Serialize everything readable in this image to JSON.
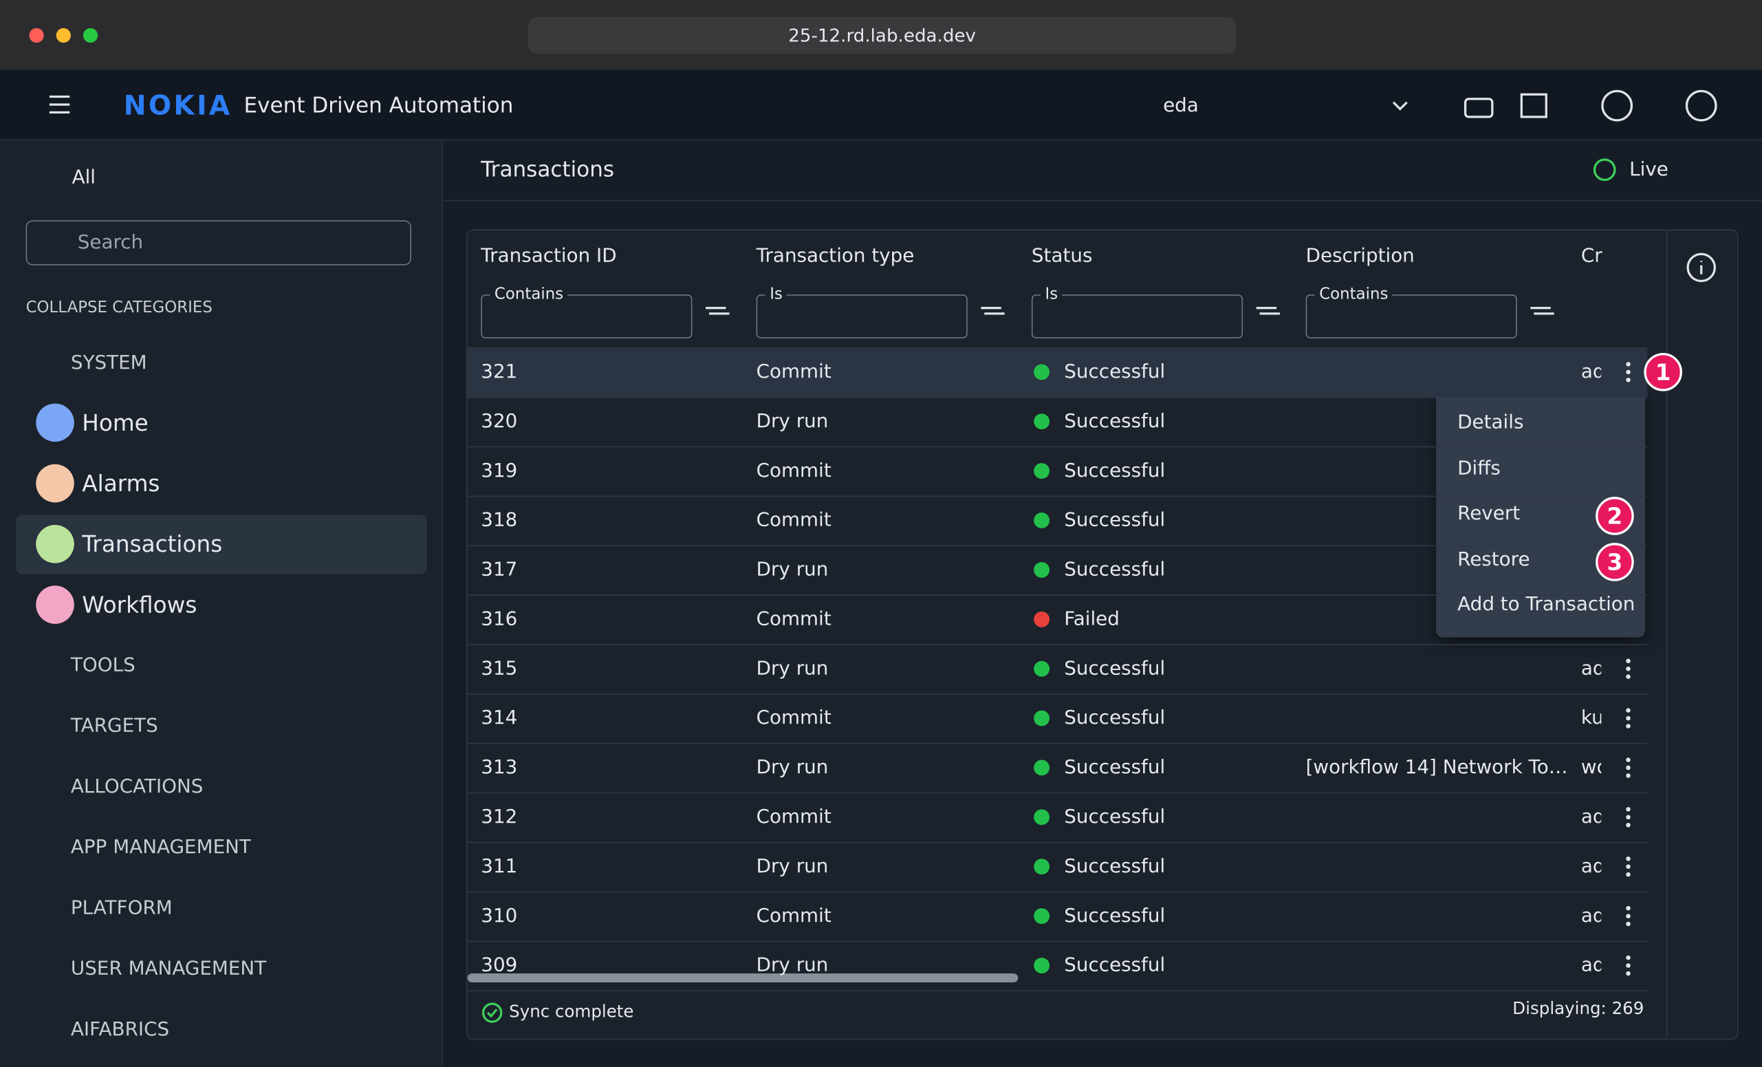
{
  "browser": {
    "url": "25-12.rd.lab.eda.dev"
  },
  "header": {
    "logo": "NOKIA",
    "app_title": "Event Driven Automation",
    "namespace": "eda"
  },
  "sidebar": {
    "scope": "All",
    "search_placeholder": "Search",
    "collapse": "COLLAPSE CATEGORIES",
    "system": "SYSTEM",
    "items": [
      {
        "label": "Home",
        "color": "#7aa7f5"
      },
      {
        "label": "Alarms",
        "color": "#f5c7a9"
      },
      {
        "label": "Transactions",
        "color": "#b9e39a",
        "selected": true
      },
      {
        "label": "Workflows",
        "color": "#f2a6c6"
      }
    ],
    "categories": [
      "TOOLS",
      "TARGETS",
      "ALLOCATIONS",
      "APP MANAGEMENT",
      "PLATFORM",
      "USER MANAGEMENT",
      "AIFABRICS"
    ]
  },
  "main": {
    "title": "Transactions",
    "live": "Live"
  },
  "table": {
    "columns": [
      "Transaction ID",
      "Transaction type",
      "Status",
      "Description",
      "Cr"
    ],
    "filters": [
      "Contains",
      "Is",
      "Is",
      "Contains"
    ],
    "rows": [
      {
        "id": "321",
        "type": "Commit",
        "status": "Successful",
        "status_color": "#22c04a",
        "creator": "ad",
        "highlight": true
      },
      {
        "id": "320",
        "type": "Dry run",
        "status": "Successful",
        "status_color": "#22c04a"
      },
      {
        "id": "319",
        "type": "Commit",
        "status": "Successful",
        "status_color": "#22c04a"
      },
      {
        "id": "318",
        "type": "Commit",
        "status": "Successful",
        "status_color": "#22c04a"
      },
      {
        "id": "317",
        "type": "Dry run",
        "status": "Successful",
        "status_color": "#22c04a"
      },
      {
        "id": "316",
        "type": "Commit",
        "status": "Failed",
        "status_color": "#e8413c"
      },
      {
        "id": "315",
        "type": "Dry run",
        "status": "Successful",
        "status_color": "#22c04a",
        "creator": "ad"
      },
      {
        "id": "314",
        "type": "Commit",
        "status": "Successful",
        "status_color": "#22c04a",
        "creator": "ku"
      },
      {
        "id": "313",
        "type": "Dry run",
        "status": "Successful",
        "status_color": "#22c04a",
        "description": "[workflow 14] Network To…",
        "creator": "wo"
      },
      {
        "id": "312",
        "type": "Commit",
        "status": "Successful",
        "status_color": "#22c04a",
        "creator": "ad"
      },
      {
        "id": "311",
        "type": "Dry run",
        "status": "Successful",
        "status_color": "#22c04a",
        "creator": "ad"
      },
      {
        "id": "310",
        "type": "Commit",
        "status": "Successful",
        "status_color": "#22c04a",
        "creator": "ad"
      },
      {
        "id": "309",
        "type": "Dry run",
        "status": "Successful",
        "status_color": "#22c04a",
        "creator": "ad"
      }
    ],
    "footer_status": "Sync complete",
    "displaying": "Displaying: 269"
  },
  "context_menu": {
    "items": [
      "Details",
      "Diffs",
      "Revert",
      "Restore",
      "Add to Transaction"
    ]
  },
  "badges": [
    "1",
    "2",
    "3"
  ]
}
